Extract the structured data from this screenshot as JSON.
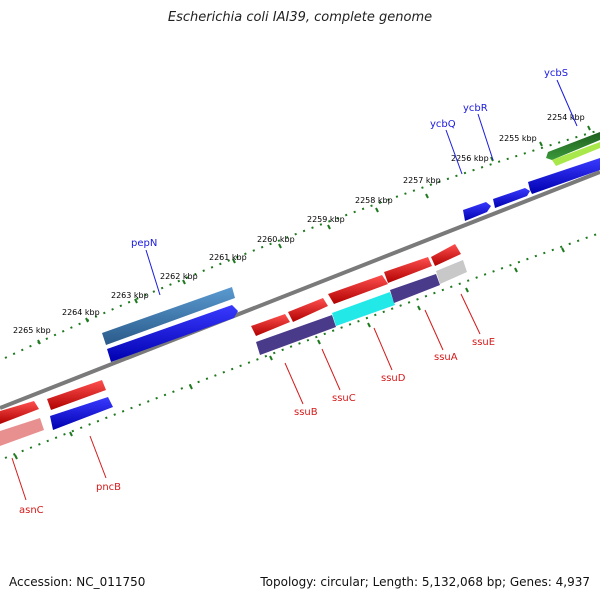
{
  "title": "Escherichia coli IAI39, complete genome",
  "footer": {
    "accession": "Accession: NC_011750",
    "summary": "Topology: circular; Length: 5,132,068 bp; Genes: 4,937"
  },
  "colors": {
    "backbone": "#888888",
    "tick_dots": "#1e7a1e",
    "label_forward": "#1a1adf",
    "label_reverse": "#d41a1a"
  },
  "scale_labels": [
    "2254 kbp",
    "2255 kbp",
    "2256 kbp",
    "2257 kbp",
    "2258 kbp",
    "2259 kbp",
    "2260 kbp",
    "2261 kbp",
    "2262 kbp",
    "2263 kbp",
    "2264 kbp",
    "2265 kbp"
  ],
  "gene_labels": {
    "forward": [
      "ycbS",
      "ycbR",
      "ycbQ",
      "pepN"
    ],
    "reverse": [
      "ssuE",
      "ssuA",
      "ssuD",
      "ssuC",
      "ssuB",
      "pncB",
      "asnC"
    ]
  }
}
